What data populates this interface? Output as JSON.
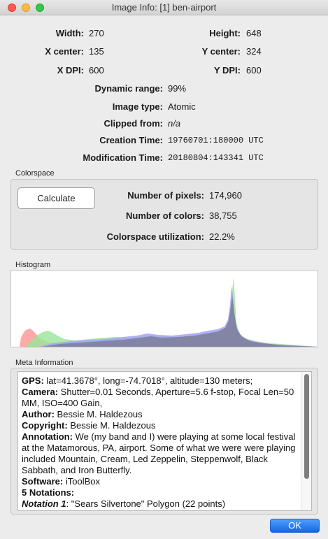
{
  "window": {
    "title": "Image Info: [1] ben-airport"
  },
  "info": {
    "width_label": "Width:",
    "width": "270",
    "height_label": "Height:",
    "height": "648",
    "xcenter_label": "X center:",
    "xcenter": "135",
    "ycenter_label": "Y center:",
    "ycenter": "324",
    "xdpi_label": "X DPI:",
    "xdpi": "600",
    "ydpi_label": "Y DPI:",
    "ydpi": "600",
    "dynrange_label": "Dynamic range:",
    "dynrange": "99%",
    "imgtype_label": "Image type:",
    "imgtype": "Atomic",
    "clipped_label": "Clipped from:",
    "clipped": "n/a",
    "ctime_label": "Creation Time:",
    "ctime": "19760701:180000 UTC",
    "mtime_label": "Modification Time:",
    "mtime": "20180804:143341 UTC"
  },
  "colorspace": {
    "title": "Colorspace",
    "calculate_label": "Calculate",
    "pixels_label": "Number of pixels:",
    "pixels": "174,960",
    "colors_label": "Number of colors:",
    "colors": "38,755",
    "util_label": "Colorspace utilization:",
    "util": "22.2%"
  },
  "histogram": {
    "title": "Histogram",
    "colors": {
      "red": "#ff8c8c",
      "green": "#8fe08f",
      "blue": "#9a9af5",
      "overlap": "#7d7d9a"
    }
  },
  "meta": {
    "title": "Meta Information",
    "gps_label": "GPS:",
    "gps": " lat=41.3678°, long=-74.7018°, altitude=130 meters;",
    "camera_label": "Camera:",
    "camera": " Shutter=0.01 Seconds, Aperture=5.6 f-stop, Focal Len=50 MM, ISO=400 Gain,",
    "author_label": "Author:",
    "author": " Bessie M. Haldezous",
    "copyright_label": "Copyright:",
    "copyright": " Bessie M. Haldezous",
    "annotation_label": "Annotation:",
    "annotation": " We (my band and I) were playing at some local festival at the Matamorous, PA, airport. Some of what we were were playing included Mountain, Cream, Led Zeppelin, Steppenwolf, Black Sabbath, and Iron Butterfly.",
    "software_label": "Software:",
    "software": " iToolBox",
    "notations_label": "5 Notations:",
    "notation1_label": "Notation 1",
    "notation1": ": \"Sears Silvertone\" Polygon (22 points)"
  },
  "ok_label": "OK"
}
